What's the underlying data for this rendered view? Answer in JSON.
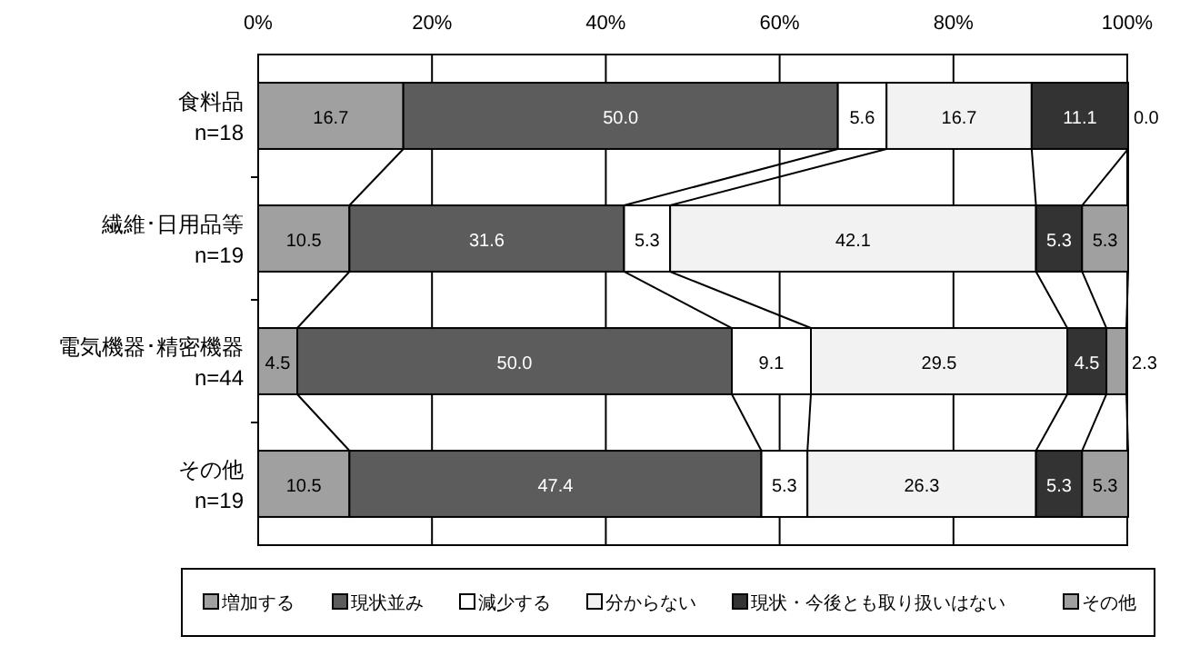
{
  "chart_data": {
    "type": "bar",
    "orientation": "horizontal",
    "stacked": true,
    "categories": [
      "食料品\nn=18",
      "繊維･日用品等\nn=19",
      "電気機器･精密機器\nn=44",
      "その他\nn=19"
    ],
    "series": [
      {
        "name": "増加する",
        "color": "#a0a0a0",
        "values": [
          16.7,
          10.5,
          4.5,
          10.5
        ],
        "value_labels": [
          "16.7",
          "10.5",
          "4.5",
          "10.5"
        ]
      },
      {
        "name": "現状並み",
        "color": "#5c5c5c",
        "values": [
          50.0,
          31.6,
          50.0,
          47.4
        ],
        "value_labels": [
          "50.0",
          "31.6",
          "50.0",
          "47.4"
        ]
      },
      {
        "name": "減少する",
        "color": "#ffffff",
        "values": [
          5.6,
          5.3,
          9.1,
          5.3
        ],
        "value_labels": [
          "5.6",
          "5.3",
          "9.1",
          "5.3"
        ]
      },
      {
        "name": "分からない",
        "color": "#f2f2f2",
        "values": [
          16.7,
          42.1,
          29.5,
          26.3
        ],
        "value_labels": [
          "16.7",
          "42.1",
          "29.5",
          "26.3"
        ]
      },
      {
        "name": "現状・今後とも取り扱いはない",
        "color": "#333333",
        "values": [
          11.1,
          5.3,
          4.5,
          5.3
        ],
        "value_labels": [
          "11.1",
          "5.3",
          "4.5",
          "5.3"
        ]
      },
      {
        "name": "その他",
        "color": "#a0a0a0",
        "values": [
          0.0,
          5.3,
          2.3,
          5.3
        ],
        "value_labels": [
          "0.0",
          "5.3",
          "2.3",
          "5.3"
        ]
      }
    ],
    "xlim": [
      0,
      100
    ],
    "xticks": [
      {
        "value": 0,
        "label": "0%"
      },
      {
        "value": 20,
        "label": "20%"
      },
      {
        "value": 40,
        "label": "40%"
      },
      {
        "value": 60,
        "label": "60%"
      },
      {
        "value": 80,
        "label": "80%"
      },
      {
        "value": 100,
        "label": "100%"
      }
    ],
    "grid": "x",
    "legend": "bottom"
  }
}
